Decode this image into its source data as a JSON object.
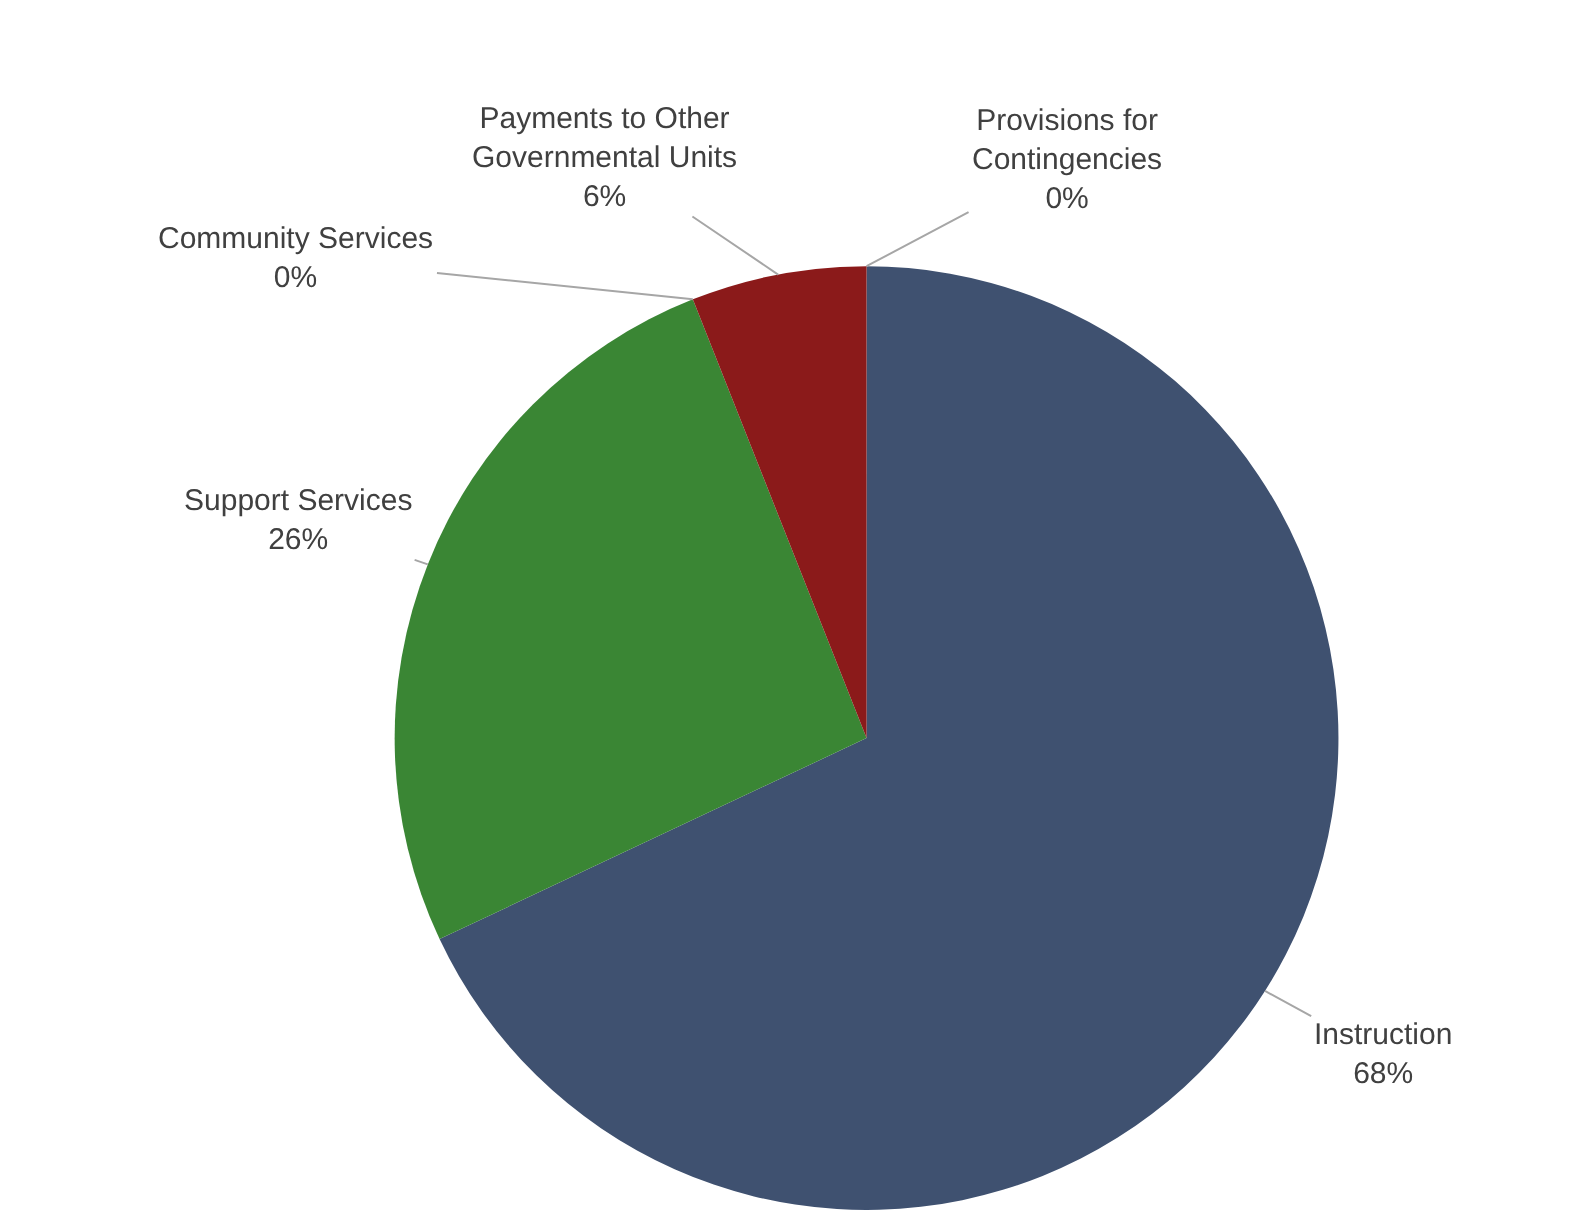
{
  "chart_data": {
    "type": "pie",
    "categories": [
      "Instruction",
      "Support Services",
      "Community Services",
      "Payments to Other Governmental Units",
      "Provisions for Contingencies"
    ],
    "values": [
      68,
      26,
      0,
      6,
      0
    ],
    "colors": [
      "#3f5170",
      "#3a8634",
      "#e07b1a",
      "#8b1a1a",
      "#4a6fa5"
    ],
    "value_labels": [
      "68%",
      "26%",
      "0%",
      "6%",
      "0%"
    ],
    "legend": false
  }
}
